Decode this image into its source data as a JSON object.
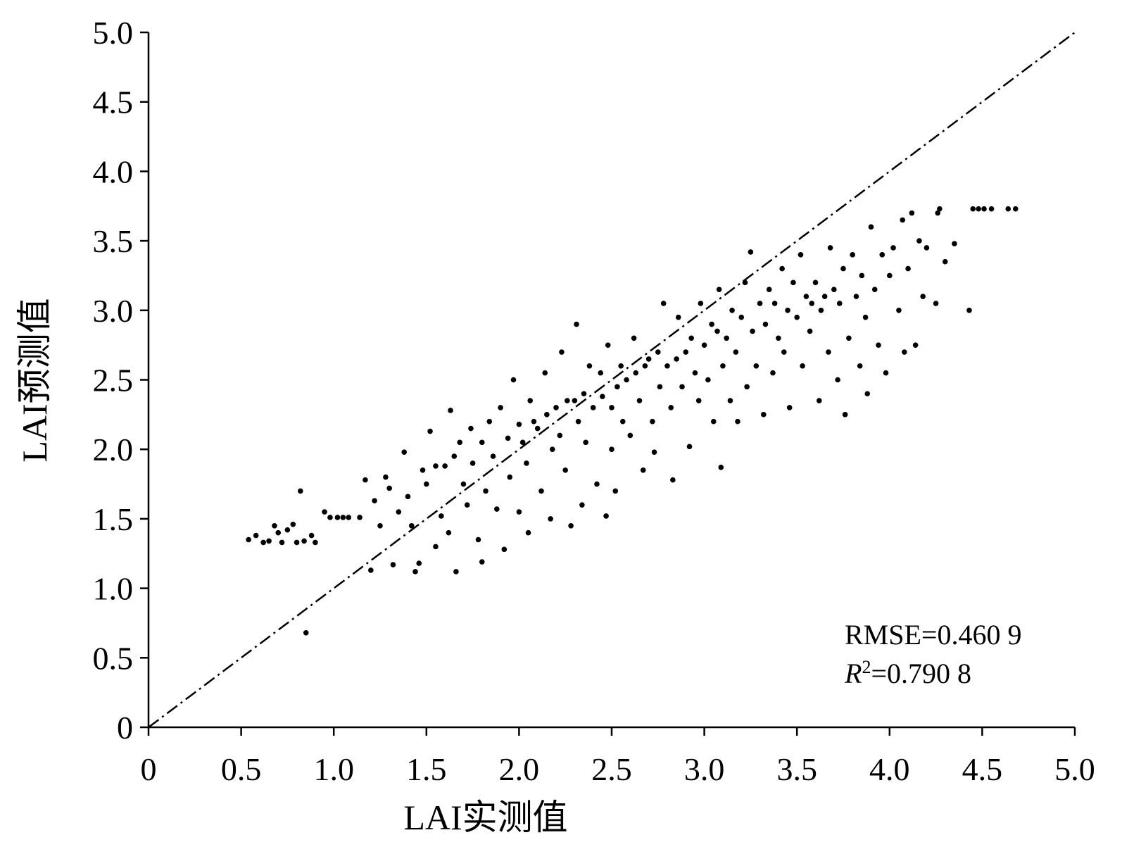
{
  "chart_data": {
    "type": "scatter",
    "x_label": "LAI实测值",
    "y_label": "LAI预测值",
    "annotations": {
      "rmse": "RMSE=0.460 9",
      "r2_symbol": "R",
      "r2_exponent": "2",
      "r2_value": "=0.790 8"
    },
    "color": "#000000",
    "xlim": [
      0,
      5
    ],
    "ylim": [
      0,
      5
    ],
    "xticks": [
      0,
      0.5,
      {
        "value": 1,
        "label": "1.0"
      },
      1.5,
      {
        "value": 2,
        "label": "2.0"
      },
      2.5,
      {
        "value": 3,
        "label": "3.0"
      },
      3.5,
      {
        "value": 4,
        "label": "4.0"
      },
      4.5,
      {
        "value": 5,
        "label": "5.0"
      }
    ],
    "yticks": [
      0,
      0.5,
      {
        "value": 1,
        "label": "1.0"
      },
      1.5,
      {
        "value": 2,
        "label": "2.0"
      },
      2.5,
      {
        "value": 3,
        "label": "3.0"
      },
      3.5,
      {
        "value": 4,
        "label": "4.0"
      },
      4.5,
      {
        "value": 5,
        "label": "5.0"
      }
    ],
    "grid": false,
    "x": [
      0.54,
      0.58,
      0.62,
      0.65,
      0.68,
      0.7,
      0.72,
      0.75,
      0.78,
      0.8,
      0.82,
      0.84,
      0.88,
      0.9,
      0.85,
      0.95,
      0.98,
      1.02,
      1.05,
      1.08,
      1.14,
      1.17,
      1.2,
      1.22,
      1.25,
      1.28,
      1.3,
      1.32,
      1.35,
      1.38,
      1.4,
      1.42,
      1.44,
      1.46,
      1.48,
      1.5,
      1.52,
      1.55,
      1.55,
      1.58,
      1.6,
      1.62,
      1.63,
      1.65,
      1.66,
      1.68,
      1.7,
      1.72,
      1.74,
      1.75,
      1.78,
      1.8,
      1.8,
      1.82,
      1.84,
      1.86,
      1.88,
      1.9,
      1.92,
      1.94,
      1.95,
      1.97,
      2.0,
      2.0,
      2.02,
      2.04,
      2.05,
      2.06,
      2.08,
      2.1,
      2.12,
      2.14,
      2.15,
      2.17,
      2.18,
      2.2,
      2.22,
      2.23,
      2.25,
      2.26,
      2.28,
      2.3,
      2.31,
      2.32,
      2.34,
      2.35,
      2.36,
      2.38,
      2.4,
      2.42,
      2.44,
      2.45,
      2.47,
      2.48,
      2.5,
      2.5,
      2.52,
      2.53,
      2.55,
      2.56,
      2.58,
      2.6,
      2.62,
      2.63,
      2.65,
      2.67,
      2.68,
      2.7,
      2.72,
      2.73,
      2.75,
      2.76,
      2.78,
      2.8,
      2.82,
      2.83,
      2.85,
      2.86,
      2.88,
      2.9,
      2.92,
      2.93,
      2.95,
      2.97,
      2.98,
      3.0,
      3.02,
      3.04,
      3.05,
      3.07,
      3.08,
      3.09,
      3.1,
      3.12,
      3.14,
      3.15,
      3.17,
      3.18,
      3.2,
      3.22,
      3.23,
      3.25,
      3.26,
      3.28,
      3.3,
      3.32,
      3.33,
      3.35,
      3.37,
      3.38,
      3.4,
      3.42,
      3.43,
      3.45,
      3.46,
      3.48,
      3.5,
      3.52,
      3.53,
      3.55,
      3.57,
      3.58,
      3.6,
      3.62,
      3.63,
      3.65,
      3.67,
      3.68,
      3.7,
      3.72,
      3.73,
      3.75,
      3.76,
      3.78,
      3.8,
      3.82,
      3.84,
      3.85,
      3.87,
      3.88,
      3.9,
      3.92,
      3.94,
      3.96,
      3.98,
      4.0,
      4.02,
      4.05,
      4.07,
      4.08,
      4.1,
      4.12,
      4.14,
      4.16,
      4.18,
      4.2,
      4.25,
      4.26,
      4.3,
      4.35,
      4.43,
      4.45,
      4.48,
      4.51,
      4.55,
      4.64,
      4.68,
      4.27
    ],
    "y": [
      1.35,
      1.38,
      1.33,
      1.34,
      1.45,
      1.4,
      1.33,
      1.42,
      1.46,
      1.33,
      1.7,
      1.34,
      1.38,
      1.33,
      0.68,
      1.55,
      1.51,
      1.51,
      1.51,
      1.51,
      1.51,
      1.78,
      1.13,
      1.63,
      1.45,
      1.8,
      1.72,
      1.17,
      1.55,
      1.98,
      1.66,
      1.45,
      1.12,
      1.18,
      1.85,
      1.75,
      2.13,
      1.88,
      1.3,
      1.52,
      1.88,
      1.4,
      2.28,
      1.95,
      1.12,
      2.05,
      1.75,
      1.6,
      2.15,
      1.9,
      1.35,
      2.05,
      1.19,
      1.7,
      2.2,
      1.95,
      1.57,
      2.3,
      1.28,
      2.08,
      1.8,
      2.5,
      2.18,
      1.55,
      2.05,
      1.9,
      1.4,
      2.35,
      2.2,
      2.15,
      1.7,
      2.55,
      2.25,
      1.5,
      2.0,
      2.3,
      2.1,
      2.7,
      1.85,
      2.35,
      1.45,
      2.35,
      2.9,
      2.2,
      1.6,
      2.4,
      2.05,
      2.6,
      2.3,
      1.75,
      2.55,
      2.38,
      1.52,
      2.75,
      2.3,
      2.0,
      1.7,
      2.45,
      2.6,
      2.2,
      2.5,
      2.1,
      2.8,
      2.55,
      2.35,
      1.85,
      2.6,
      2.65,
      2.2,
      1.98,
      2.7,
      2.45,
      3.05,
      2.6,
      2.3,
      1.78,
      2.65,
      2.95,
      2.45,
      2.7,
      2.02,
      2.8,
      2.55,
      2.35,
      3.05,
      2.75,
      2.5,
      2.9,
      2.2,
      2.85,
      3.15,
      1.87,
      2.6,
      2.8,
      2.35,
      3.0,
      2.7,
      2.2,
      2.95,
      3.2,
      2.45,
      3.42,
      2.85,
      2.6,
      3.05,
      2.25,
      2.9,
      3.15,
      2.55,
      3.05,
      2.8,
      3.3,
      2.7,
      3.0,
      2.3,
      3.2,
      2.95,
      3.4,
      2.6,
      3.1,
      2.85,
      3.05,
      3.2,
      2.35,
      3.0,
      3.1,
      2.7,
      3.45,
      3.15,
      2.5,
      3.05,
      3.3,
      2.25,
      2.8,
      3.4,
      3.1,
      2.6,
      3.25,
      2.95,
      2.4,
      3.6,
      3.15,
      2.75,
      3.4,
      2.55,
      3.25,
      3.45,
      3.0,
      3.65,
      2.7,
      3.3,
      3.7,
      2.75,
      3.5,
      3.1,
      3.45,
      3.05,
      3.7,
      3.35,
      3.48,
      3.0,
      3.73,
      3.73,
      3.73,
      3.73,
      3.73,
      3.73,
      3.73
    ]
  }
}
